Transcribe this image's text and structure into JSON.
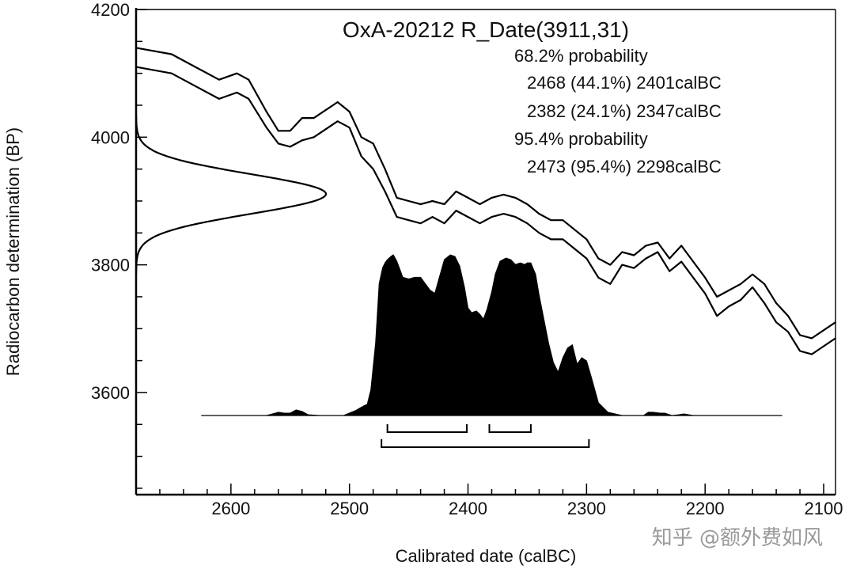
{
  "chart_data": {
    "type": "line",
    "title": "OxA-20212 R_Date(3911,31)",
    "xlabel": "Calibrated date (calBC)",
    "ylabel": "Radiocarbon determination (BP)",
    "xlim": [
      2680,
      2090
    ],
    "ylim": [
      3440,
      4200
    ],
    "x_reversed": true,
    "x_ticks": [
      2600,
      2500,
      2400,
      2300,
      2200,
      2100
    ],
    "y_ticks": [
      3600,
      3800,
      4000,
      4200
    ],
    "x_tick_labels": [
      "2600",
      "2500",
      "2400",
      "2300",
      "2200",
      "2100"
    ],
    "y_tick_labels": [
      "3600",
      "3800",
      "4000",
      "4200"
    ],
    "grid": false,
    "annotations": [
      "68.2% probability",
      "2468 (44.1%) 2401calBC",
      "2382 (24.1%) 2347calBC",
      "95.4% probability",
      "2473 (95.4%) 2298calBC"
    ],
    "radiocarbon_date": {
      "mean_bp": 3911,
      "sd": 31
    },
    "calibration_curve": {
      "x": [
        2680,
        2650,
        2630,
        2610,
        2595,
        2585,
        2570,
        2560,
        2550,
        2540,
        2530,
        2510,
        2500,
        2490,
        2480,
        2470,
        2460,
        2450,
        2440,
        2430,
        2420,
        2410,
        2400,
        2390,
        2380,
        2370,
        2360,
        2350,
        2340,
        2330,
        2320,
        2310,
        2300,
        2290,
        2280,
        2270,
        2260,
        2250,
        2240,
        2230,
        2220,
        2210,
        2200,
        2190,
        2180,
        2170,
        2160,
        2150,
        2140,
        2130,
        2120,
        2110,
        2090
      ],
      "upper": [
        4140,
        4130,
        4110,
        4090,
        4100,
        4090,
        4040,
        4010,
        4010,
        4030,
        4030,
        4055,
        4040,
        4000,
        3990,
        3950,
        3905,
        3900,
        3895,
        3900,
        3895,
        3915,
        3905,
        3895,
        3905,
        3910,
        3905,
        3895,
        3880,
        3870,
        3870,
        3855,
        3840,
        3810,
        3800,
        3820,
        3815,
        3830,
        3835,
        3810,
        3830,
        3805,
        3780,
        3750,
        3760,
        3770,
        3785,
        3770,
        3740,
        3720,
        3690,
        3685,
        3710
      ],
      "lower": [
        4110,
        4100,
        4080,
        4060,
        4070,
        4060,
        4015,
        3990,
        3985,
        3995,
        4000,
        4025,
        4015,
        3970,
        3950,
        3915,
        3875,
        3870,
        3865,
        3875,
        3865,
        3885,
        3875,
        3865,
        3875,
        3880,
        3875,
        3865,
        3850,
        3840,
        3840,
        3825,
        3810,
        3780,
        3770,
        3800,
        3795,
        3810,
        3820,
        3790,
        3805,
        3780,
        3755,
        3720,
        3735,
        3745,
        3765,
        3740,
        3710,
        3695,
        3665,
        3660,
        3685
      ]
    },
    "calibrated_distribution": {
      "x": [
        2625,
        2570,
        2565,
        2560,
        2555,
        2550,
        2545,
        2540,
        2535,
        2525,
        2505,
        2495,
        2488,
        2485,
        2482,
        2478,
        2475,
        2472,
        2470,
        2468,
        2465,
        2463,
        2460,
        2458,
        2455,
        2450,
        2445,
        2440,
        2436,
        2432,
        2428,
        2425,
        2420,
        2415,
        2411,
        2407,
        2403,
        2400,
        2397,
        2393,
        2390,
        2387,
        2384,
        2380,
        2377,
        2373,
        2368,
        2364,
        2360,
        2356,
        2352,
        2350,
        2347,
        2343,
        2340,
        2336,
        2332,
        2328,
        2324,
        2320,
        2316,
        2312,
        2308,
        2304,
        2300,
        2296,
        2290,
        2282,
        2270,
        2252,
        2248,
        2244,
        2238,
        2234,
        2228,
        2222,
        2218,
        2214,
        2210,
        2205,
        2135
      ],
      "density": [
        0,
        0,
        0.01,
        0.02,
        0.015,
        0.015,
        0.035,
        0.025,
        0.005,
        0,
        0,
        0.03,
        0.06,
        0.07,
        0.16,
        0.45,
        0.82,
        0.92,
        0.95,
        0.97,
        0.99,
        1.0,
        0.96,
        0.92,
        0.86,
        0.85,
        0.86,
        0.86,
        0.82,
        0.78,
        0.76,
        0.84,
        0.97,
        1.0,
        0.99,
        0.93,
        0.8,
        0.67,
        0.64,
        0.65,
        0.63,
        0.6,
        0.66,
        0.77,
        0.88,
        0.96,
        0.98,
        0.97,
        0.94,
        0.95,
        0.94,
        0.95,
        0.95,
        0.88,
        0.75,
        0.6,
        0.45,
        0.33,
        0.27,
        0.36,
        0.42,
        0.44,
        0.32,
        0.36,
        0.34,
        0.24,
        0.08,
        0.02,
        0,
        0,
        0.02,
        0.02,
        0.015,
        0.015,
        0,
        0.005,
        0.01,
        0.005,
        0,
        0,
        0
      ]
    },
    "probability_ranges": {
      "sigma1": [
        [
          2468,
          2401
        ],
        [
          2382,
          2347
        ]
      ],
      "sigma2": [
        [
          2473,
          2298
        ]
      ]
    }
  },
  "watermark": "知乎 @额外费如风"
}
